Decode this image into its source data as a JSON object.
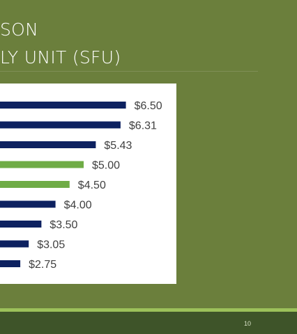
{
  "slide": {
    "title_line1": "SON",
    "title_line2": "LY UNIT (SFU)",
    "page_number": "10"
  },
  "colors": {
    "background": "#6b7f3c",
    "bar_primary": "#0d2160",
    "bar_highlight": "#6fac46",
    "footer_bar": "#3e5429",
    "footer_stripe": "#9cc15a"
  },
  "chart_data": {
    "type": "bar",
    "orientation": "horizontal",
    "values": [
      6.5,
      6.31,
      5.43,
      5.0,
      4.5,
      4.0,
      3.5,
      3.05,
      2.75
    ],
    "labels": [
      "$6.50",
      "$6.31",
      "$5.43",
      "$5.00",
      "$4.50",
      "$4.00",
      "$3.50",
      "$3.05",
      "$2.75"
    ],
    "highlighted": [
      false,
      false,
      false,
      true,
      true,
      false,
      false,
      false,
      false
    ],
    "grid": false,
    "legend": "none"
  }
}
